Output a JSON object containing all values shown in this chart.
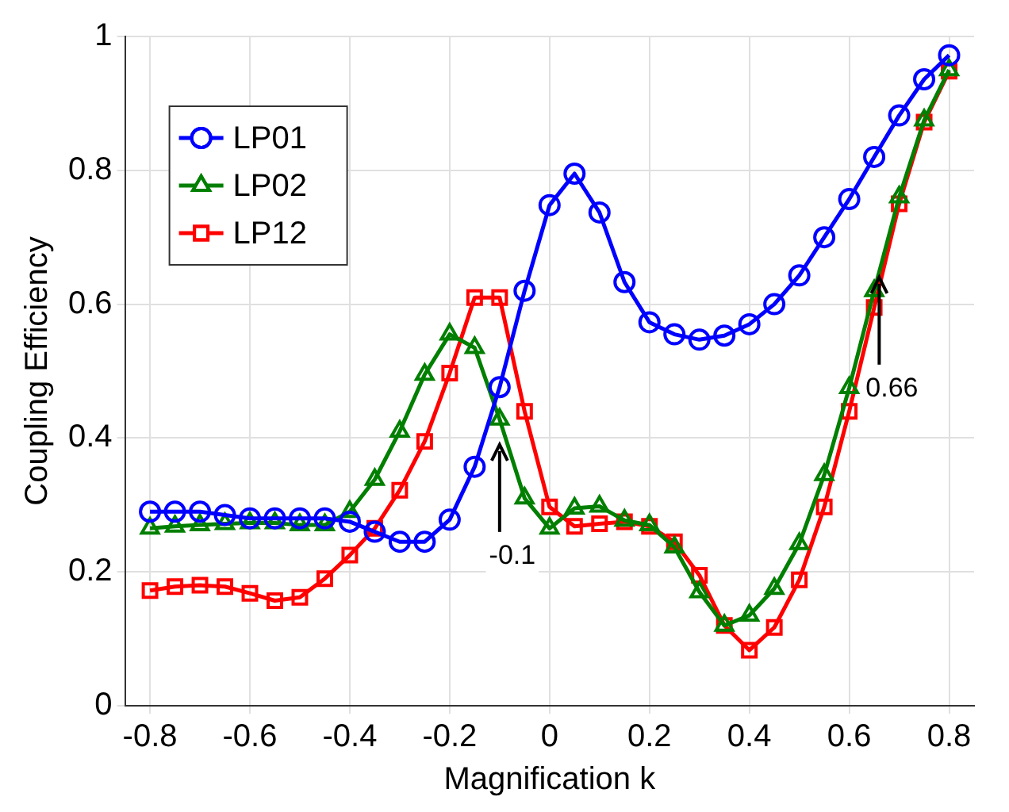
{
  "chart_data": {
    "type": "line",
    "xlabel": "Magnification k",
    "ylabel": "Coupling Efficiency",
    "x": [
      -0.8,
      -0.75,
      -0.7,
      -0.65,
      -0.6,
      -0.55,
      -0.5,
      -0.45,
      -0.4,
      -0.35,
      -0.3,
      -0.25,
      -0.2,
      -0.15,
      -0.1,
      -0.05,
      0,
      0.05,
      0.1,
      0.15,
      0.2,
      0.25,
      0.3,
      0.35,
      0.4,
      0.45,
      0.5,
      0.55,
      0.6,
      0.65,
      0.7,
      0.75,
      0.8
    ],
    "series": [
      {
        "name": "LP01",
        "color": "#0000ff",
        "marker": "circle",
        "values": [
          0.29,
          0.29,
          0.29,
          0.285,
          0.28,
          0.28,
          0.28,
          0.28,
          0.275,
          0.26,
          0.245,
          0.245,
          0.278,
          0.357,
          0.476,
          0.62,
          0.748,
          0.795,
          0.737,
          0.633,
          0.573,
          0.555,
          0.547,
          0.553,
          0.57,
          0.6,
          0.643,
          0.7,
          0.757,
          0.82,
          0.882,
          0.936,
          0.972
        ]
      },
      {
        "name": "LP02",
        "color": "#007f00",
        "marker": "triangle",
        "values": [
          0.265,
          0.268,
          0.27,
          0.272,
          0.273,
          0.273,
          0.27,
          0.27,
          0.29,
          0.338,
          0.41,
          0.495,
          0.555,
          0.535,
          0.428,
          0.31,
          0.265,
          0.295,
          0.298,
          0.277,
          0.27,
          0.237,
          0.17,
          0.12,
          0.135,
          0.175,
          0.242,
          0.345,
          0.475,
          0.62,
          0.76,
          0.875,
          0.95
        ]
      },
      {
        "name": "LP12",
        "color": "#ff0000",
        "marker": "square",
        "values": [
          0.172,
          0.178,
          0.18,
          0.178,
          0.168,
          0.157,
          0.162,
          0.19,
          0.225,
          0.265,
          0.322,
          0.395,
          0.497,
          0.61,
          0.61,
          0.44,
          0.297,
          0.268,
          0.272,
          0.275,
          0.268,
          0.245,
          0.195,
          0.12,
          0.083,
          0.117,
          0.188,
          0.297,
          0.44,
          0.595,
          0.75,
          0.872,
          0.948
        ]
      }
    ],
    "xlim": [
      -0.85,
      0.85
    ],
    "xticks": [
      -0.8,
      -0.6,
      -0.4,
      -0.2,
      0,
      0.2,
      0.4,
      0.6,
      0.8
    ],
    "ylim": [
      0,
      1
    ],
    "yticks": [
      0,
      0.2,
      0.4,
      0.6,
      0.8,
      1
    ],
    "annotations": [
      {
        "text": "-0.1",
        "x": -0.1,
        "y": 0.39
      },
      {
        "text": "0.66",
        "x": 0.66,
        "y": 0.64
      }
    ],
    "grid": true,
    "legend": "top left",
    "line_style": "solid"
  }
}
